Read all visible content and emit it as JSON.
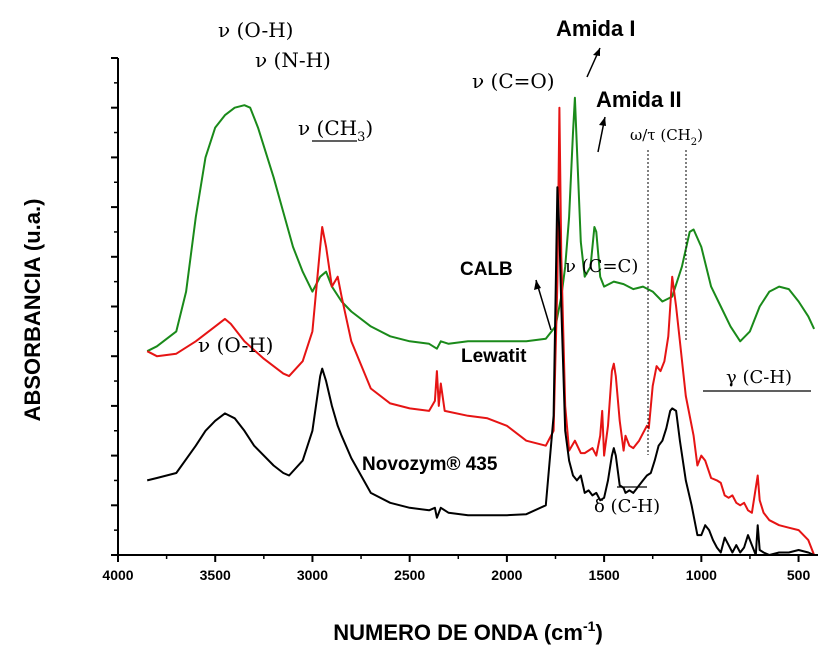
{
  "chart_data": {
    "type": "line",
    "xlabel": "NUMERO DE ONDA (cm",
    "xlabel_sup": "-1",
    "xlabel_close": ")",
    "ylabel": "ABSORBANCIA (u.a.)",
    "xlim": [
      4000,
      400
    ],
    "ylim": [
      0,
      10
    ],
    "x_reversed": true,
    "y_tick_labels_shown": false,
    "x_ticks": [
      4000,
      3500,
      3000,
      2500,
      2000,
      1500,
      1000,
      500
    ],
    "series": [
      {
        "name": "CALB",
        "color": "#1a8a1a",
        "points": [
          [
            3850,
            4.1
          ],
          [
            3800,
            4.2
          ],
          [
            3700,
            4.5
          ],
          [
            3650,
            5.3
          ],
          [
            3600,
            6.8
          ],
          [
            3550,
            8.0
          ],
          [
            3500,
            8.6
          ],
          [
            3450,
            8.85
          ],
          [
            3400,
            9.0
          ],
          [
            3350,
            9.05
          ],
          [
            3320,
            9.0
          ],
          [
            3280,
            8.6
          ],
          [
            3200,
            7.6
          ],
          [
            3150,
            6.9
          ],
          [
            3100,
            6.2
          ],
          [
            3050,
            5.7
          ],
          [
            3000,
            5.3
          ],
          [
            2960,
            5.6
          ],
          [
            2930,
            5.7
          ],
          [
            2900,
            5.4
          ],
          [
            2850,
            5.1
          ],
          [
            2800,
            4.9
          ],
          [
            2700,
            4.6
          ],
          [
            2600,
            4.4
          ],
          [
            2500,
            4.3
          ],
          [
            2400,
            4.25
          ],
          [
            2360,
            4.15
          ],
          [
            2340,
            4.3
          ],
          [
            2300,
            4.25
          ],
          [
            2200,
            4.3
          ],
          [
            2100,
            4.3
          ],
          [
            2000,
            4.3
          ],
          [
            1900,
            4.3
          ],
          [
            1800,
            4.35
          ],
          [
            1750,
            4.6
          ],
          [
            1720,
            5.2
          ],
          [
            1700,
            5.8
          ],
          [
            1680,
            6.8
          ],
          [
            1660,
            8.5
          ],
          [
            1650,
            9.2
          ],
          [
            1640,
            8.2
          ],
          [
            1620,
            6.3
          ],
          [
            1600,
            5.6
          ],
          [
            1570,
            5.8
          ],
          [
            1550,
            6.6
          ],
          [
            1540,
            6.5
          ],
          [
            1520,
            5.6
          ],
          [
            1500,
            5.4
          ],
          [
            1450,
            5.5
          ],
          [
            1400,
            5.45
          ],
          [
            1350,
            5.35
          ],
          [
            1300,
            5.4
          ],
          [
            1250,
            5.3
          ],
          [
            1200,
            5.1
          ],
          [
            1150,
            5.2
          ],
          [
            1100,
            5.8
          ],
          [
            1060,
            6.5
          ],
          [
            1040,
            6.55
          ],
          [
            1000,
            6.2
          ],
          [
            950,
            5.4
          ],
          [
            900,
            5.0
          ],
          [
            850,
            4.6
          ],
          [
            800,
            4.3
          ],
          [
            750,
            4.5
          ],
          [
            700,
            5.0
          ],
          [
            650,
            5.3
          ],
          [
            600,
            5.4
          ],
          [
            550,
            5.35
          ],
          [
            500,
            5.1
          ],
          [
            450,
            4.8
          ],
          [
            420,
            4.55
          ]
        ]
      },
      {
        "name": "Lewatit",
        "color": "#e61414",
        "points": [
          [
            3850,
            4.1
          ],
          [
            3800,
            4.0
          ],
          [
            3700,
            4.05
          ],
          [
            3600,
            4.3
          ],
          [
            3500,
            4.6
          ],
          [
            3450,
            4.75
          ],
          [
            3420,
            4.65
          ],
          [
            3350,
            4.3
          ],
          [
            3250,
            3.95
          ],
          [
            3150,
            3.65
          ],
          [
            3120,
            3.6
          ],
          [
            3050,
            3.9
          ],
          [
            3000,
            4.5
          ],
          [
            2960,
            6.2
          ],
          [
            2950,
            6.6
          ],
          [
            2930,
            6.2
          ],
          [
            2900,
            5.4
          ],
          [
            2870,
            5.6
          ],
          [
            2850,
            5.2
          ],
          [
            2800,
            4.3
          ],
          [
            2700,
            3.35
          ],
          [
            2600,
            3.05
          ],
          [
            2500,
            2.95
          ],
          [
            2400,
            2.9
          ],
          [
            2370,
            3.1
          ],
          [
            2360,
            3.7
          ],
          [
            2350,
            3.0
          ],
          [
            2340,
            3.45
          ],
          [
            2320,
            2.9
          ],
          [
            2200,
            2.8
          ],
          [
            2100,
            2.75
          ],
          [
            2000,
            2.6
          ],
          [
            1900,
            2.3
          ],
          [
            1800,
            2.2
          ],
          [
            1760,
            2.5
          ],
          [
            1740,
            5.5
          ],
          [
            1730,
            9.0
          ],
          [
            1720,
            6.0
          ],
          [
            1700,
            3.0
          ],
          [
            1680,
            2.1
          ],
          [
            1650,
            2.3
          ],
          [
            1620,
            2.05
          ],
          [
            1600,
            2.05
          ],
          [
            1580,
            2.1
          ],
          [
            1560,
            2.15
          ],
          [
            1540,
            2.0
          ],
          [
            1520,
            2.4
          ],
          [
            1510,
            2.9
          ],
          [
            1500,
            2.0
          ],
          [
            1480,
            2.6
          ],
          [
            1460,
            3.7
          ],
          [
            1450,
            3.85
          ],
          [
            1440,
            3.6
          ],
          [
            1420,
            2.7
          ],
          [
            1400,
            2.1
          ],
          [
            1390,
            2.4
          ],
          [
            1370,
            2.2
          ],
          [
            1350,
            2.15
          ],
          [
            1320,
            2.3
          ],
          [
            1300,
            2.45
          ],
          [
            1280,
            2.6
          ],
          [
            1270,
            2.55
          ],
          [
            1250,
            3.4
          ],
          [
            1230,
            3.8
          ],
          [
            1210,
            3.7
          ],
          [
            1190,
            3.9
          ],
          [
            1170,
            4.4
          ],
          [
            1150,
            5.6
          ],
          [
            1130,
            5.0
          ],
          [
            1110,
            4.3
          ],
          [
            1080,
            3.2
          ],
          [
            1040,
            2.4
          ],
          [
            1020,
            1.8
          ],
          [
            1000,
            2.0
          ],
          [
            980,
            1.9
          ],
          [
            950,
            1.55
          ],
          [
            920,
            1.5
          ],
          [
            900,
            1.45
          ],
          [
            880,
            1.2
          ],
          [
            860,
            1.15
          ],
          [
            840,
            1.2
          ],
          [
            820,
            1.05
          ],
          [
            800,
            1.0
          ],
          [
            780,
            1.05
          ],
          [
            760,
            0.9
          ],
          [
            740,
            0.85
          ],
          [
            710,
            1.6
          ],
          [
            700,
            1.1
          ],
          [
            680,
            0.85
          ],
          [
            650,
            0.7
          ],
          [
            600,
            0.6
          ],
          [
            550,
            0.55
          ],
          [
            500,
            0.5
          ],
          [
            450,
            0.3
          ],
          [
            420,
            0.0
          ]
        ]
      },
      {
        "name": "Novozym® 435",
        "color": "#000000",
        "points": [
          [
            3850,
            1.5
          ],
          [
            3800,
            1.55
          ],
          [
            3700,
            1.65
          ],
          [
            3600,
            2.2
          ],
          [
            3550,
            2.5
          ],
          [
            3500,
            2.7
          ],
          [
            3450,
            2.85
          ],
          [
            3400,
            2.75
          ],
          [
            3350,
            2.5
          ],
          [
            3300,
            2.2
          ],
          [
            3200,
            1.8
          ],
          [
            3150,
            1.65
          ],
          [
            3120,
            1.6
          ],
          [
            3050,
            1.9
          ],
          [
            3000,
            2.5
          ],
          [
            2960,
            3.6
          ],
          [
            2950,
            3.75
          ],
          [
            2930,
            3.5
          ],
          [
            2900,
            3.0
          ],
          [
            2870,
            2.6
          ],
          [
            2850,
            2.4
          ],
          [
            2800,
            1.95
          ],
          [
            2700,
            1.25
          ],
          [
            2600,
            1.05
          ],
          [
            2500,
            0.95
          ],
          [
            2400,
            0.9
          ],
          [
            2370,
            0.95
          ],
          [
            2360,
            0.75
          ],
          [
            2340,
            0.95
          ],
          [
            2300,
            0.85
          ],
          [
            2200,
            0.8
          ],
          [
            2100,
            0.8
          ],
          [
            2000,
            0.8
          ],
          [
            1900,
            0.82
          ],
          [
            1800,
            1.0
          ],
          [
            1760,
            2.8
          ],
          [
            1740,
            7.4
          ],
          [
            1730,
            6.5
          ],
          [
            1720,
            5.0
          ],
          [
            1700,
            2.5
          ],
          [
            1680,
            1.9
          ],
          [
            1660,
            1.6
          ],
          [
            1640,
            1.5
          ],
          [
            1620,
            1.6
          ],
          [
            1600,
            1.25
          ],
          [
            1580,
            1.3
          ],
          [
            1560,
            1.2
          ],
          [
            1540,
            1.25
          ],
          [
            1520,
            1.1
          ],
          [
            1500,
            1.15
          ],
          [
            1480,
            1.5
          ],
          [
            1460,
            2.0
          ],
          [
            1450,
            2.15
          ],
          [
            1440,
            2.0
          ],
          [
            1420,
            1.4
          ],
          [
            1400,
            1.35
          ],
          [
            1390,
            1.25
          ],
          [
            1370,
            1.3
          ],
          [
            1350,
            1.25
          ],
          [
            1320,
            1.4
          ],
          [
            1300,
            1.5
          ],
          [
            1280,
            1.6
          ],
          [
            1260,
            1.65
          ],
          [
            1240,
            1.9
          ],
          [
            1220,
            2.2
          ],
          [
            1200,
            2.3
          ],
          [
            1180,
            2.55
          ],
          [
            1160,
            2.9
          ],
          [
            1150,
            2.95
          ],
          [
            1130,
            2.9
          ],
          [
            1110,
            2.3
          ],
          [
            1080,
            1.5
          ],
          [
            1050,
            1.0
          ],
          [
            1020,
            0.4
          ],
          [
            1000,
            0.4
          ],
          [
            980,
            0.6
          ],
          [
            960,
            0.5
          ],
          [
            940,
            0.3
          ],
          [
            920,
            0.15
          ],
          [
            900,
            0.05
          ],
          [
            880,
            0.35
          ],
          [
            860,
            0.2
          ],
          [
            840,
            0.05
          ],
          [
            820,
            0.2
          ],
          [
            800,
            0.05
          ],
          [
            780,
            0.15
          ],
          [
            760,
            0.4
          ],
          [
            740,
            0.2
          ],
          [
            720,
            0.0
          ],
          [
            710,
            0.6
          ],
          [
            700,
            0.1
          ],
          [
            680,
            0.05
          ],
          [
            650,
            0.0
          ],
          [
            600,
            0.05
          ],
          [
            550,
            0.05
          ],
          [
            500,
            0.1
          ],
          [
            450,
            0.05
          ],
          [
            420,
            0.0
          ]
        ]
      }
    ],
    "annotations": {
      "oh_top": "ν (O-H)",
      "nh": "ν (N-H)",
      "ch3": "ν (CH",
      "ch3_sub": "3",
      "ch3_close": ")",
      "co": "ν (C=O)",
      "amida1": "Amida I",
      "amida2": "Amida II",
      "ch2": "ω/τ (CH",
      "ch2_sub": "2",
      "ch2_close": ")",
      "cc": "ν (C=C)",
      "oh_low": "ν (O-H)",
      "gamma": "γ (C-H)",
      "delta": "δ (C-H)",
      "calb": "CALB",
      "lewatit": "Lewatit",
      "novozym": "Novozym® 435"
    }
  }
}
